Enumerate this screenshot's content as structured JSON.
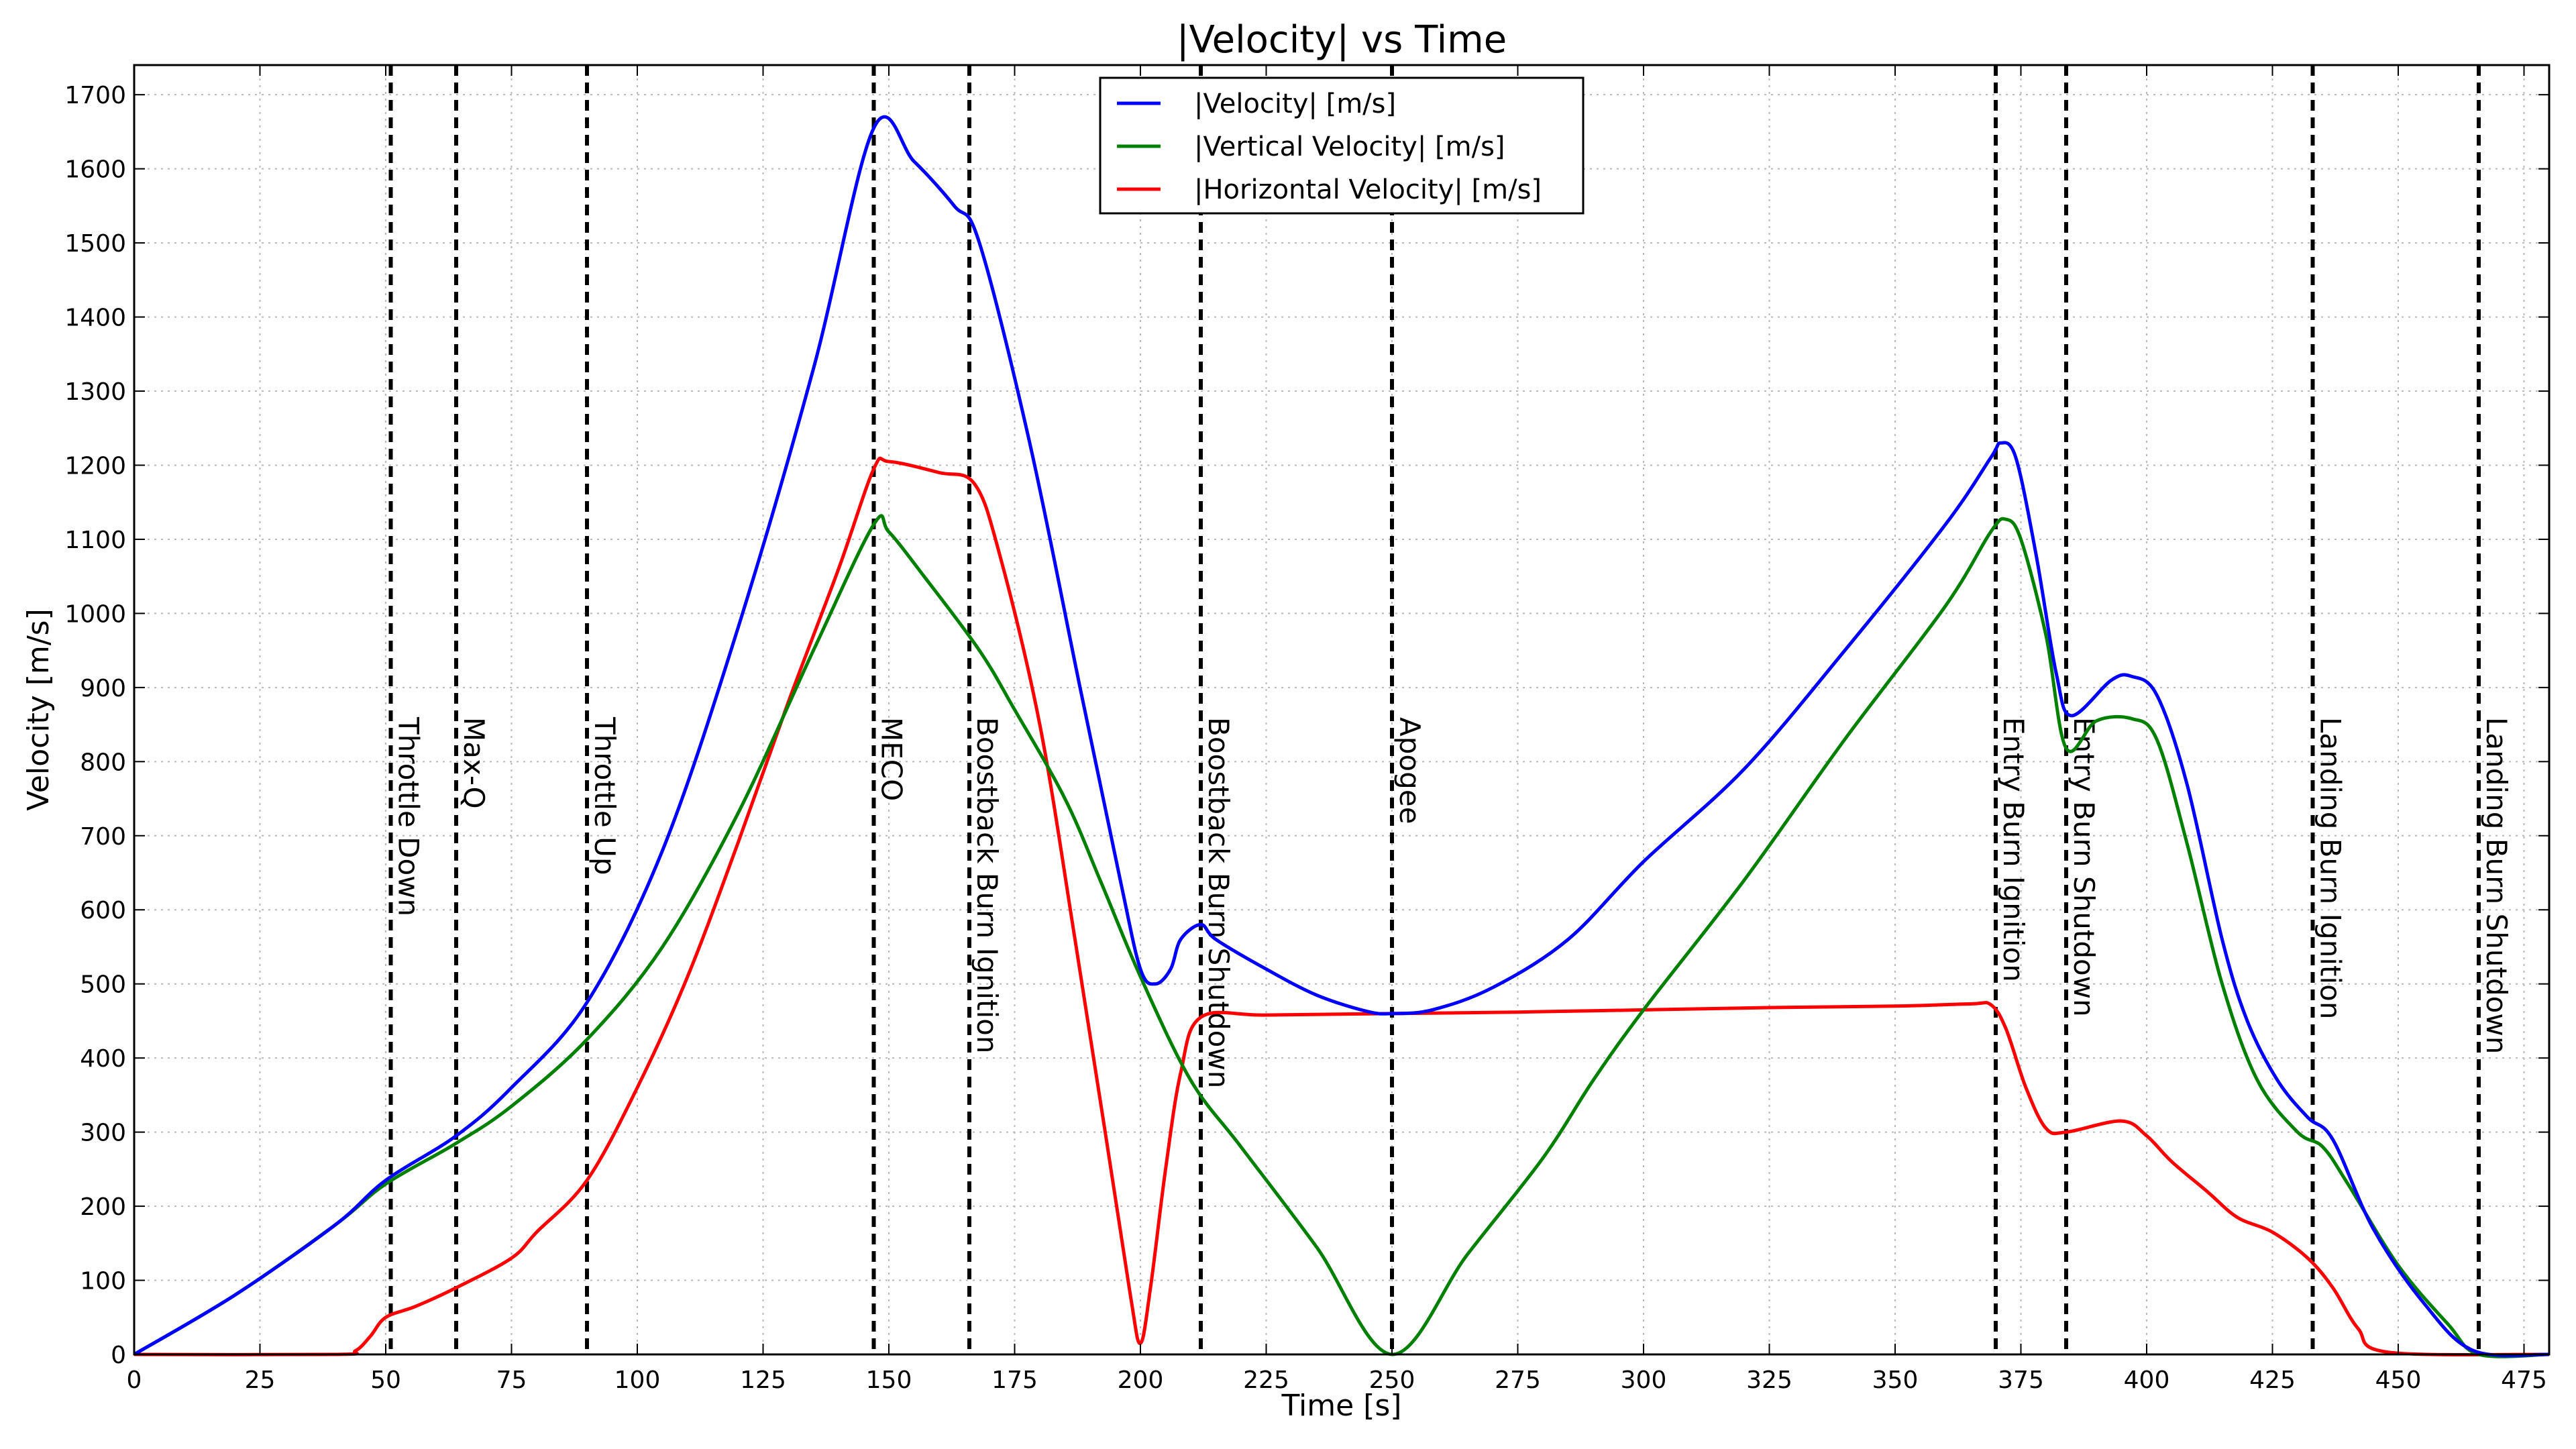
{
  "chart_data": {
    "type": "line",
    "title": "|Velocity| vs Time",
    "xlabel": "Time [s]",
    "ylabel": "Velocity [m/s]",
    "xlim": [
      0,
      480
    ],
    "ylim": [
      0,
      1740
    ],
    "xticks": [
      0,
      25,
      50,
      75,
      100,
      125,
      150,
      175,
      200,
      225,
      250,
      275,
      300,
      325,
      350,
      375,
      400,
      425,
      450,
      475
    ],
    "yticks": [
      0,
      100,
      200,
      300,
      400,
      500,
      600,
      700,
      800,
      900,
      1000,
      1100,
      1200,
      1300,
      1400,
      1500,
      1600,
      1700
    ],
    "grid": true,
    "legend": "top-center",
    "series": [
      {
        "name": "|Velocity| [m/s]",
        "color": "#0000ff",
        "points": [
          [
            0,
            0
          ],
          [
            20,
            80
          ],
          [
            40,
            175
          ],
          [
            50,
            235
          ],
          [
            64,
            295
          ],
          [
            75,
            360
          ],
          [
            90,
            475
          ],
          [
            105,
            680
          ],
          [
            120,
            980
          ],
          [
            135,
            1330
          ],
          [
            147,
            1655
          ],
          [
            155,
            1610
          ],
          [
            163,
            1550
          ],
          [
            168,
            1500
          ],
          [
            178,
            1230
          ],
          [
            188,
            900
          ],
          [
            196,
            640
          ],
          [
            200,
            520
          ],
          [
            203,
            500
          ],
          [
            206,
            520
          ],
          [
            208,
            560
          ],
          [
            212,
            580
          ],
          [
            215,
            560
          ],
          [
            225,
            520
          ],
          [
            235,
            485
          ],
          [
            245,
            463
          ],
          [
            250,
            460
          ],
          [
            258,
            465
          ],
          [
            270,
            495
          ],
          [
            285,
            560
          ],
          [
            300,
            665
          ],
          [
            320,
            790
          ],
          [
            340,
            950
          ],
          [
            360,
            1120
          ],
          [
            369,
            1210
          ],
          [
            371,
            1230
          ],
          [
            374,
            1210
          ],
          [
            378,
            1080
          ],
          [
            382,
            920
          ],
          [
            385,
            862
          ],
          [
            393,
            910
          ],
          [
            397,
            915
          ],
          [
            402,
            890
          ],
          [
            408,
            770
          ],
          [
            415,
            560
          ],
          [
            420,
            450
          ],
          [
            426,
            370
          ],
          [
            432,
            320
          ],
          [
            437,
            290
          ],
          [
            445,
            170
          ],
          [
            455,
            70
          ],
          [
            465,
            5
          ],
          [
            480,
            0
          ]
        ]
      },
      {
        "name": "|Vertical Velocity| [m/s]",
        "color": "#008000",
        "points": [
          [
            0,
            0
          ],
          [
            20,
            80
          ],
          [
            40,
            175
          ],
          [
            50,
            230
          ],
          [
            64,
            285
          ],
          [
            75,
            335
          ],
          [
            90,
            425
          ],
          [
            105,
            550
          ],
          [
            120,
            730
          ],
          [
            135,
            950
          ],
          [
            147,
            1120
          ],
          [
            150,
            1110
          ],
          [
            157,
            1050
          ],
          [
            168,
            950
          ],
          [
            175,
            870
          ],
          [
            185,
            750
          ],
          [
            192,
            640
          ],
          [
            200,
            510
          ],
          [
            210,
            370
          ],
          [
            220,
            280
          ],
          [
            235,
            145
          ],
          [
            250,
            0
          ],
          [
            265,
            135
          ],
          [
            280,
            265
          ],
          [
            290,
            370
          ],
          [
            300,
            465
          ],
          [
            320,
            640
          ],
          [
            340,
            830
          ],
          [
            360,
            1010
          ],
          [
            369,
            1110
          ],
          [
            372,
            1127
          ],
          [
            375,
            1100
          ],
          [
            380,
            970
          ],
          [
            384,
            818
          ],
          [
            390,
            855
          ],
          [
            397,
            858
          ],
          [
            402,
            830
          ],
          [
            408,
            690
          ],
          [
            415,
            500
          ],
          [
            422,
            370
          ],
          [
            430,
            300
          ],
          [
            435,
            280
          ],
          [
            440,
            230
          ],
          [
            450,
            120
          ],
          [
            460,
            40
          ],
          [
            466,
            0
          ],
          [
            480,
            0
          ]
        ]
      },
      {
        "name": "|Horizontal Velocity| [m/s]",
        "color": "#ff0000",
        "points": [
          [
            0,
            0
          ],
          [
            40,
            0
          ],
          [
            44,
            5
          ],
          [
            47,
            25
          ],
          [
            50,
            50
          ],
          [
            56,
            65
          ],
          [
            64,
            90
          ],
          [
            75,
            130
          ],
          [
            80,
            165
          ],
          [
            90,
            235
          ],
          [
            100,
            360
          ],
          [
            110,
            510
          ],
          [
            120,
            690
          ],
          [
            130,
            880
          ],
          [
            140,
            1060
          ],
          [
            147,
            1195
          ],
          [
            150,
            1205
          ],
          [
            160,
            1190
          ],
          [
            167,
            1175
          ],
          [
            172,
            1080
          ],
          [
            180,
            850
          ],
          [
            187,
            560
          ],
          [
            193,
            300
          ],
          [
            198,
            80
          ],
          [
            200,
            15
          ],
          [
            202,
            90
          ],
          [
            205,
            250
          ],
          [
            208,
            380
          ],
          [
            212,
            455
          ],
          [
            225,
            458
          ],
          [
            250,
            460
          ],
          [
            275,
            462
          ],
          [
            300,
            465
          ],
          [
            325,
            468
          ],
          [
            350,
            470
          ],
          [
            365,
            473
          ],
          [
            369,
            472
          ],
          [
            372,
            440
          ],
          [
            376,
            360
          ],
          [
            380,
            305
          ],
          [
            384,
            300
          ],
          [
            395,
            315
          ],
          [
            400,
            295
          ],
          [
            405,
            260
          ],
          [
            412,
            220
          ],
          [
            418,
            185
          ],
          [
            425,
            165
          ],
          [
            432,
            130
          ],
          [
            437,
            90
          ],
          [
            442,
            35
          ],
          [
            448,
            3
          ],
          [
            480,
            0
          ]
        ]
      }
    ],
    "events": [
      {
        "label": "Throttle Down",
        "t": 51
      },
      {
        "label": "Max-Q",
        "t": 64
      },
      {
        "label": "Throttle Up",
        "t": 90
      },
      {
        "label": "MECO",
        "t": 147
      },
      {
        "label": "Boostback Burn Ignition",
        "t": 166
      },
      {
        "label": "Boostback Burn Shutdown",
        "t": 212
      },
      {
        "label": "Apogee",
        "t": 250
      },
      {
        "label": "Entry Burn Ignition",
        "t": 370
      },
      {
        "label": "Entry Burn Shutdown",
        "t": 384
      },
      {
        "label": "Landing Burn Ignition",
        "t": 433
      },
      {
        "label": "Landing Burn Shutdown",
        "t": 466
      }
    ]
  }
}
